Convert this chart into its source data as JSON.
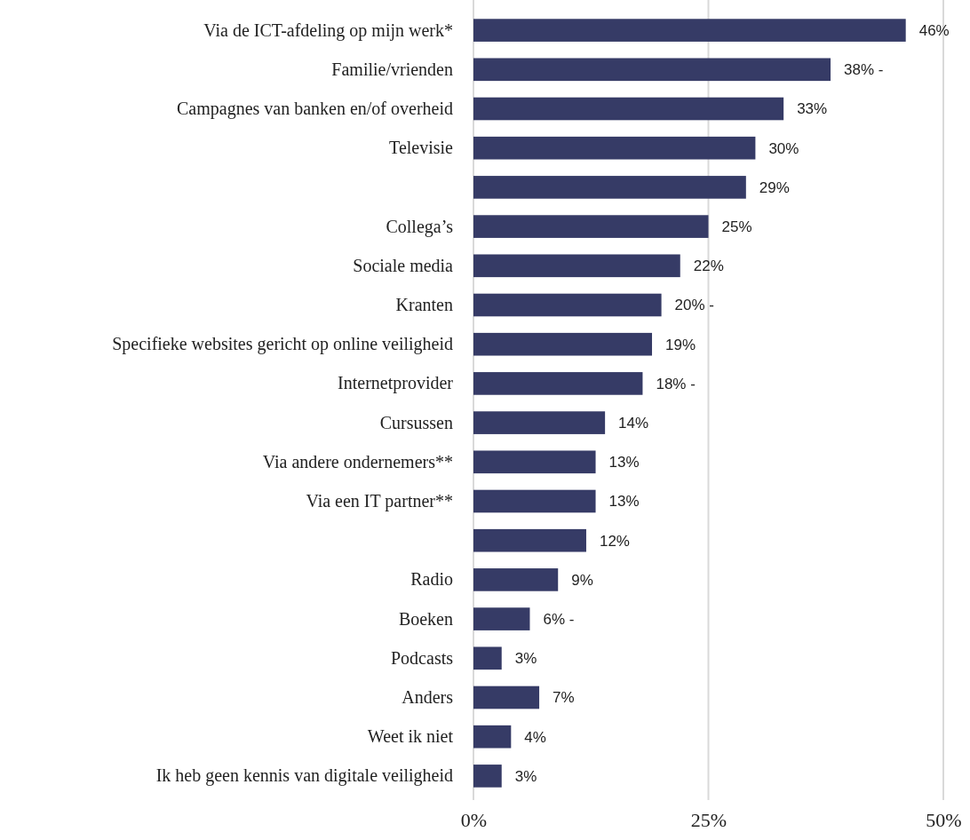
{
  "chart_data": {
    "type": "bar",
    "orientation": "horizontal",
    "categories": [
      "Via de ICT-afdeling op mijn werk*",
      "Familie/vrienden",
      "Campagnes van banken en/of overheid",
      "Televisie",
      null,
      "Collega’s",
      "Sociale media",
      "Kranten",
      "Specifieke websites gericht op online veiligheid",
      "Internetprovider",
      "Cursussen",
      "Via andere ondernemers**",
      "Via een IT partner**",
      null,
      "Radio",
      "Boeken",
      "Podcasts",
      "Anders",
      "Weet ik niet",
      "Ik heb geen kennis van digitale veiligheid"
    ],
    "values": [
      46,
      38,
      33,
      30,
      29,
      25,
      22,
      20,
      19,
      18,
      14,
      13,
      13,
      12,
      9,
      6,
      3,
      7,
      4,
      3
    ],
    "value_labels": [
      "46%",
      "38% -",
      "33%",
      "30%",
      "29%",
      "25%",
      "22%",
      "20% -",
      "19%",
      "18% -",
      "14%",
      "13%",
      "13%",
      "12%",
      "9%",
      "6% -",
      "3%",
      "7%",
      "4%",
      "3%"
    ],
    "color": "#363b66",
    "xlim": [
      0,
      50
    ],
    "xticks": [
      {
        "value": 0,
        "label": "0%"
      },
      {
        "value": 25,
        "label": "25%"
      },
      {
        "value": 50,
        "label": "50%"
      }
    ],
    "grid": "x"
  }
}
